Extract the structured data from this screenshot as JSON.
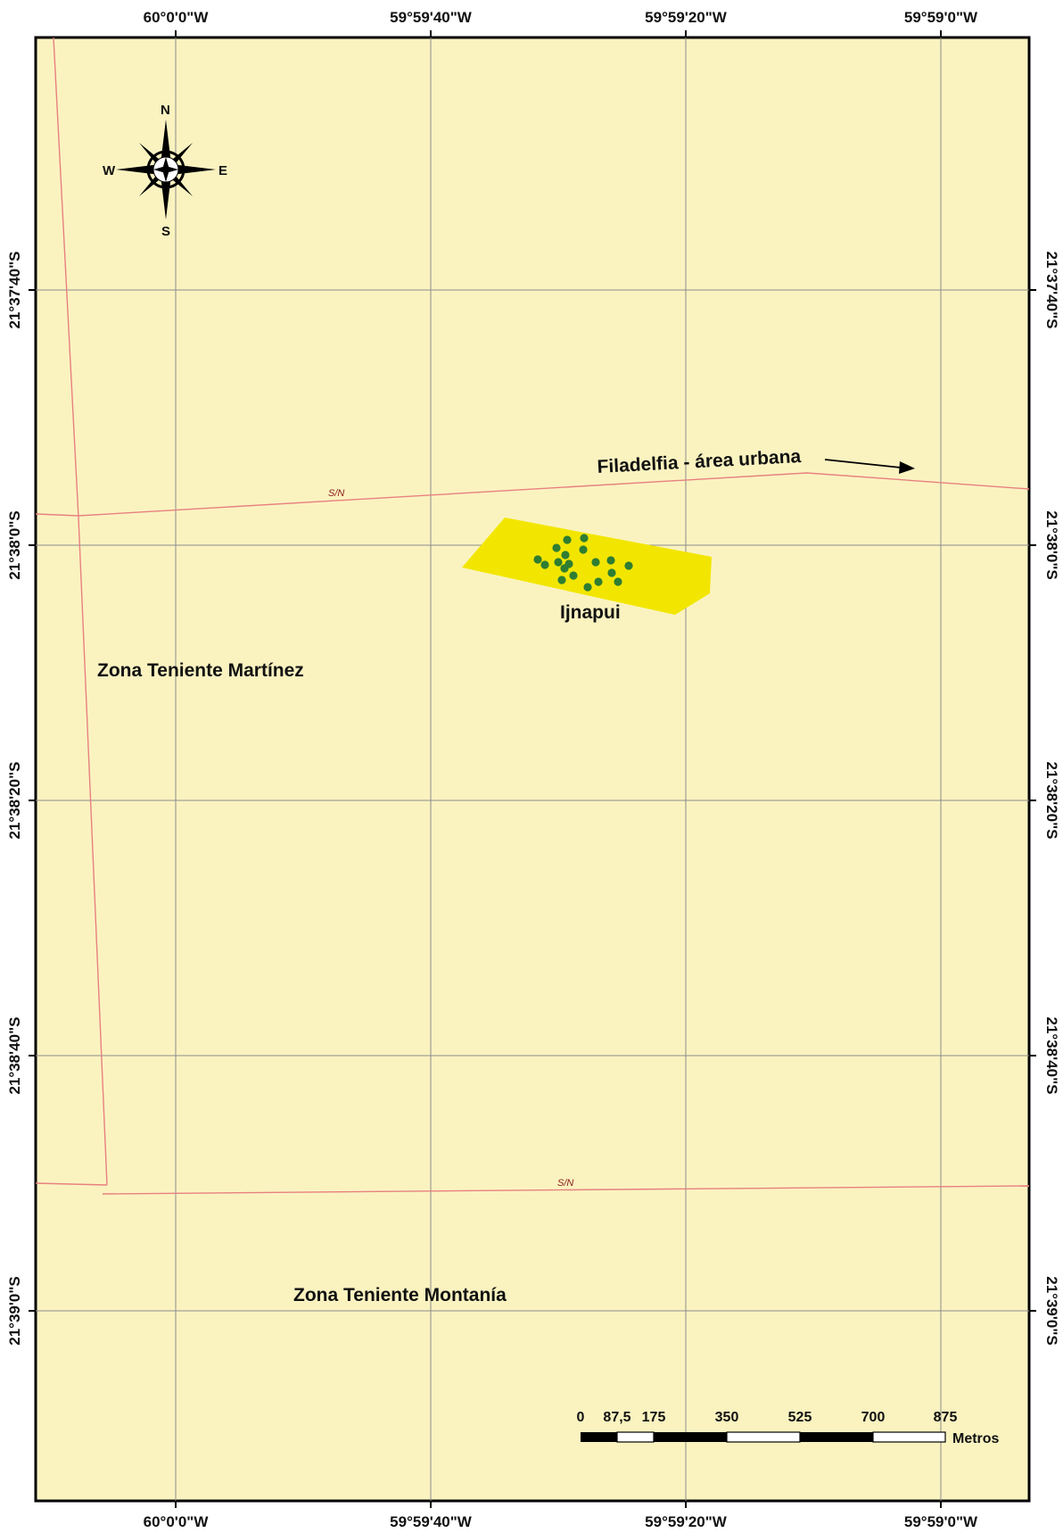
{
  "map": {
    "background_color": "#faf3c0",
    "grid_color": "#8c8c8c",
    "road_color": "#e88080",
    "polygon_color": "#f2e600",
    "point_color": "#2e7d32"
  },
  "longitude_labels": [
    "60°0'0\"W",
    "59°59'40\"W",
    "59°59'20\"W",
    "59°59'0\"W"
  ],
  "latitude_labels": [
    "21°37'40\"S",
    "21°38'0\"S",
    "21°38'20\"S",
    "21°38'40\"S",
    "21°39'0\"S"
  ],
  "compass": {
    "north": "N",
    "south": "S",
    "east": "E",
    "west": "W"
  },
  "labels": {
    "road_sn_1": "S/N",
    "road_sn_2": "S/N",
    "filadelfia": "Filadelfia - área urbana",
    "community": "Ijnapui",
    "zone_martinez": "Zona Teniente Martínez",
    "zone_montania": "Zona Teniente Montanía"
  },
  "scale_bar": {
    "ticks": [
      "0",
      "87,5",
      "175",
      "350",
      "525",
      "700",
      "875"
    ],
    "unit": "Metros"
  },
  "icons": {
    "compass": "north-arrow-compass-rose",
    "direction_arrow": "right-arrow"
  }
}
